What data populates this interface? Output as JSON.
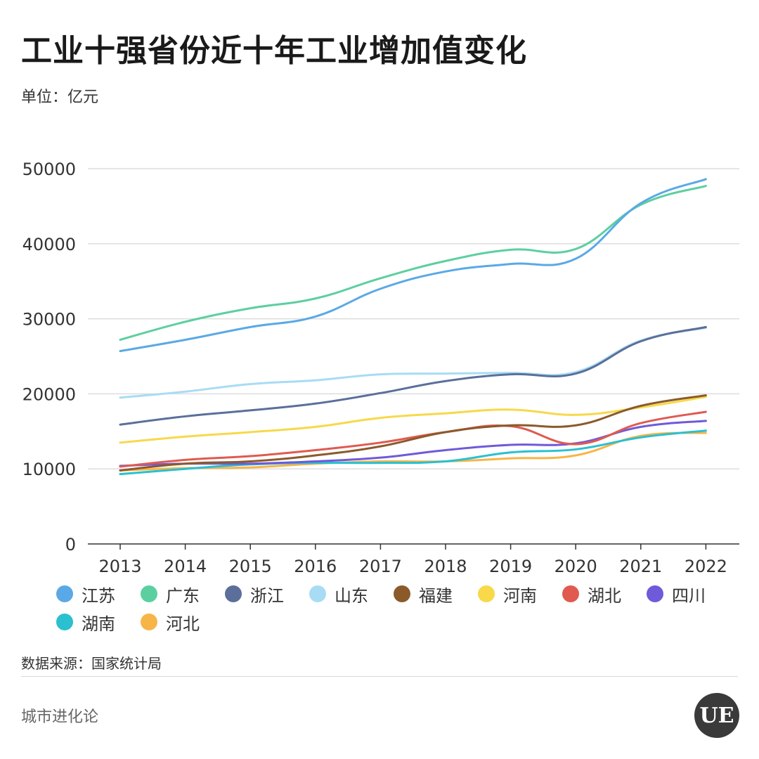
{
  "header": {
    "title": "工业十强省份近十年工业增加值变化",
    "unit": "单位：亿元"
  },
  "footer": {
    "source": "数据来源：国家统计局",
    "brand": "城市进化论",
    "logo_text": "UE"
  },
  "chart_data": {
    "type": "line",
    "title": "工业十强省份近十年工业增加值变化",
    "xlabel": "",
    "ylabel": "单位：亿元",
    "ylim": [
      0,
      50000
    ],
    "yticks": [
      0,
      10000,
      20000,
      30000,
      40000,
      50000
    ],
    "grid": true,
    "legend_position": "bottom",
    "x": [
      "2013",
      "2014",
      "2015",
      "2016",
      "2017",
      "2018",
      "2019",
      "2020",
      "2021",
      "2022"
    ],
    "series": [
      {
        "name": "江苏",
        "color": "#5aa9e6",
        "values": [
          25700,
          27200,
          28900,
          30300,
          34000,
          36300,
          37300,
          38000,
          45400,
          48600
        ]
      },
      {
        "name": "广东",
        "color": "#5ccfa0",
        "values": [
          27200,
          29600,
          31400,
          32700,
          35400,
          37700,
          39200,
          39300,
          45200,
          47700
        ]
      },
      {
        "name": "浙江",
        "color": "#5b6f9a",
        "values": [
          15900,
          17000,
          17800,
          18700,
          20100,
          21700,
          22600,
          22700,
          27000,
          28900
        ]
      },
      {
        "name": "山东",
        "color": "#a8dcf4",
        "values": [
          19500,
          20300,
          21300,
          21800,
          22600,
          22700,
          22800,
          22900,
          27100,
          28800
        ]
      },
      {
        "name": "福建",
        "color": "#8b5a2b",
        "values": [
          9800,
          10700,
          11000,
          11800,
          13000,
          14900,
          15800,
          15800,
          18400,
          19800
        ]
      },
      {
        "name": "河南",
        "color": "#f7d94a",
        "values": [
          13500,
          14300,
          14900,
          15600,
          16800,
          17400,
          17900,
          17200,
          18200,
          19600
        ]
      },
      {
        "name": "湖北",
        "color": "#e05a50",
        "values": [
          10300,
          11200,
          11700,
          12500,
          13500,
          14900,
          15700,
          13300,
          16100,
          17600
        ]
      },
      {
        "name": "四川",
        "color": "#6f5ad9",
        "values": [
          10400,
          10700,
          10700,
          11000,
          11500,
          12500,
          13200,
          13400,
          15600,
          16400
        ]
      },
      {
        "name": "湖南",
        "color": "#2ac0d0",
        "values": [
          9300,
          10000,
          10600,
          10800,
          10800,
          11000,
          12200,
          12600,
          14200,
          15100
        ]
      },
      {
        "name": "河北",
        "color": "#f7b548",
        "values": [
          9800,
          10100,
          10200,
          10700,
          11000,
          11000,
          11400,
          11800,
          14400,
          14800
        ]
      }
    ]
  }
}
